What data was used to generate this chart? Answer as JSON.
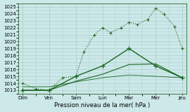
{
  "x_labels": [
    "Dim",
    "Ven",
    "Sam",
    "Lun",
    "Mar",
    "Mer",
    "Jeu"
  ],
  "background_color": "#cce8e8",
  "grid_color": "#aacccc",
  "line_color": "#1a6620",
  "ylabel": "Pression niveau de la mer( hPa )",
  "ylim": [
    1012.5,
    1025.5
  ],
  "yticks": [
    1013,
    1014,
    1015,
    1016,
    1017,
    1018,
    1019,
    1020,
    1021,
    1022,
    1023,
    1024,
    1025
  ],
  "line1_x": [
    0,
    0.5,
    1,
    1.5,
    2,
    2.3,
    2.7,
    3,
    3.3,
    3.7,
    4,
    4.3,
    4.7,
    5,
    5.3,
    5.7,
    6
  ],
  "line1_y": [
    1014.0,
    1013.2,
    1013.0,
    1014.8,
    1015.0,
    1018.5,
    1021.0,
    1022.0,
    1021.3,
    1022.0,
    1022.8,
    1022.5,
    1023.2,
    1024.8,
    1024.0,
    1022.2,
    1019.0
  ],
  "line2_x": [
    0,
    1,
    2,
    3,
    4,
    5,
    6
  ],
  "line2_y": [
    1013.0,
    1013.0,
    1015.0,
    1016.5,
    1019.0,
    1016.5,
    1014.8
  ],
  "line3_x": [
    0,
    1,
    2,
    3,
    4,
    5,
    6
  ],
  "line3_y": [
    1013.0,
    1013.0,
    1014.3,
    1015.3,
    1016.7,
    1016.8,
    1014.8
  ],
  "line4_x": [
    0,
    1,
    2,
    3,
    4,
    5,
    6
  ],
  "line4_y": [
    1013.5,
    1013.5,
    1014.2,
    1014.8,
    1015.2,
    1015.0,
    1014.8
  ]
}
